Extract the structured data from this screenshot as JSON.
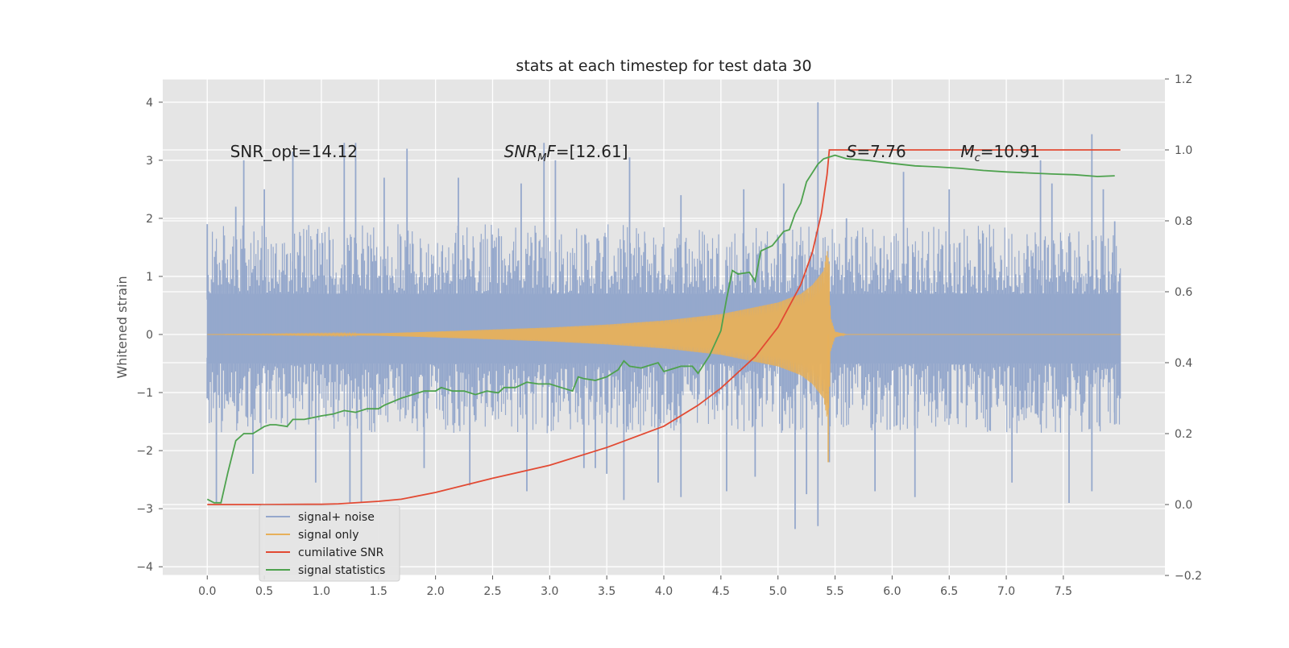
{
  "chart_data": {
    "type": "line",
    "title": "stats at each timestep for test data 30",
    "ylabel": "Whitened strain",
    "xlabel": "",
    "xlim": [
      -0.39,
      8.39
    ],
    "ylim": [
      -4.15,
      4.4
    ],
    "y2lim": [
      -0.2,
      1.2
    ],
    "xticks": [
      0.0,
      0.5,
      1.0,
      1.5,
      2.0,
      2.5,
      3.0,
      3.5,
      4.0,
      4.5,
      5.0,
      5.5,
      6.0,
      6.5,
      7.0,
      7.5
    ],
    "xtick_labels": [
      "0.0",
      "0.5",
      "1.0",
      "1.5",
      "2.0",
      "2.5",
      "3.0",
      "3.5",
      "4.0",
      "4.5",
      "5.0",
      "5.5",
      "6.0",
      "6.5",
      "7.0",
      "7.5"
    ],
    "yticks": [
      4,
      3,
      2,
      1,
      0,
      -1,
      -2,
      -3,
      -4
    ],
    "ytick_labels": [
      "4",
      "3",
      "2",
      "1",
      "0",
      "−1",
      "−2",
      "−3",
      "−4"
    ],
    "y2ticks": [
      1.2,
      1.0,
      0.8,
      0.6,
      0.4,
      0.2,
      0.0,
      -0.2
    ],
    "y2tick_labels": [
      "1.2",
      "1.0",
      "0.8",
      "0.6",
      "0.4",
      "0.2",
      "0.0",
      "−0.2"
    ],
    "grid": true,
    "legend_position": "lower-left",
    "annotations": [
      {
        "id": "snr-opt",
        "label": "SNR_opt=14.12",
        "x": 0.2,
        "y": 3.15
      },
      {
        "id": "snr-mf",
        "label": "SNR_MF=[12.61]",
        "x": 2.6,
        "y": 3.15
      },
      {
        "id": "s-stat",
        "label": "S=7.76",
        "x": 5.6,
        "y": 3.15
      },
      {
        "id": "mchirp",
        "label": "M_c=10.91",
        "x": 6.6,
        "y": 3.15
      }
    ],
    "series": [
      {
        "name": "signal+ noise",
        "axis": "left",
        "color": "#95a8cc",
        "style": "noise-band",
        "x_range": [
          0.0,
          8.0
        ],
        "core_range": [
          -0.5,
          0.7
        ],
        "spike_positive": [
          [
            0.0,
            1.9
          ],
          [
            0.25,
            2.2
          ],
          [
            0.32,
            3.0
          ],
          [
            0.5,
            2.5
          ],
          [
            0.75,
            3.15
          ],
          [
            1.2,
            3.3
          ],
          [
            1.3,
            3.3
          ],
          [
            1.55,
            2.7
          ],
          [
            1.75,
            3.2
          ],
          [
            2.2,
            2.7
          ],
          [
            2.75,
            2.6
          ],
          [
            2.95,
            3.3
          ],
          [
            3.05,
            3.0
          ],
          [
            3.7,
            3.05
          ],
          [
            4.15,
            2.4
          ],
          [
            4.7,
            2.5
          ],
          [
            5.05,
            2.6
          ],
          [
            5.35,
            4.0
          ],
          [
            5.6,
            2.0
          ],
          [
            6.1,
            2.8
          ],
          [
            6.5,
            2.5
          ],
          [
            7.3,
            3.0
          ],
          [
            7.4,
            2.6
          ],
          [
            7.75,
            3.45
          ],
          [
            7.85,
            2.5
          ],
          [
            7.95,
            1.95
          ]
        ],
        "spike_negative": [
          [
            0.0,
            -1.1
          ],
          [
            0.08,
            -2.9
          ],
          [
            0.4,
            -2.4
          ],
          [
            0.95,
            -2.55
          ],
          [
            1.25,
            -2.9
          ],
          [
            1.35,
            -2.9
          ],
          [
            1.9,
            -2.3
          ],
          [
            2.3,
            -2.6
          ],
          [
            2.8,
            -2.7
          ],
          [
            3.3,
            -2.3
          ],
          [
            3.4,
            -2.3
          ],
          [
            3.5,
            -2.4
          ],
          [
            3.65,
            -2.85
          ],
          [
            3.95,
            -2.55
          ],
          [
            4.15,
            -2.8
          ],
          [
            4.55,
            -2.7
          ],
          [
            4.8,
            -2.45
          ],
          [
            5.15,
            -3.35
          ],
          [
            5.25,
            -2.75
          ],
          [
            5.35,
            -3.3
          ],
          [
            5.45,
            -2.2
          ],
          [
            5.85,
            -2.7
          ],
          [
            6.2,
            -2.8
          ],
          [
            7.05,
            -2.55
          ],
          [
            7.55,
            -2.9
          ],
          [
            7.75,
            -2.7
          ],
          [
            7.95,
            -1.55
          ]
        ]
      },
      {
        "name": "signal only",
        "axis": "left",
        "color": "#e7b05a",
        "style": "chirp",
        "merger_time": 5.45,
        "amplitude_envelope": [
          [
            0.0,
            0.0
          ],
          [
            1.5,
            0.02
          ],
          [
            2.0,
            0.05
          ],
          [
            3.0,
            0.12
          ],
          [
            3.5,
            0.17
          ],
          [
            4.0,
            0.24
          ],
          [
            4.5,
            0.35
          ],
          [
            5.0,
            0.55
          ],
          [
            5.2,
            0.7
          ],
          [
            5.3,
            0.85
          ],
          [
            5.4,
            1.1
          ],
          [
            5.43,
            1.45
          ],
          [
            5.45,
            1.2
          ],
          [
            5.46,
            0.3
          ],
          [
            5.5,
            0.05
          ],
          [
            5.6,
            0.0
          ],
          [
            8.0,
            0.0
          ]
        ],
        "extreme_lows": [
          [
            5.44,
            -2.2
          ]
        ]
      },
      {
        "name": "cumilative SNR",
        "axis": "right",
        "color": "#e24a33",
        "points": [
          [
            0.0,
            0.0
          ],
          [
            0.5,
            0.0
          ],
          [
            1.0,
            0.001
          ],
          [
            1.15,
            0.002
          ],
          [
            1.5,
            0.009
          ],
          [
            1.7,
            0.015
          ],
          [
            2.0,
            0.034
          ],
          [
            2.5,
            0.074
          ],
          [
            3.0,
            0.111
          ],
          [
            3.5,
            0.161
          ],
          [
            4.0,
            0.221
          ],
          [
            4.3,
            0.28
          ],
          [
            4.5,
            0.328
          ],
          [
            4.8,
            0.417
          ],
          [
            5.0,
            0.5
          ],
          [
            5.2,
            0.62
          ],
          [
            5.3,
            0.71
          ],
          [
            5.38,
            0.82
          ],
          [
            5.43,
            0.93
          ],
          [
            5.45,
            1.0
          ],
          [
            8.0,
            1.0
          ]
        ]
      },
      {
        "name": "signal statistics",
        "axis": "right",
        "color": "#4ea24e",
        "points": [
          [
            0.0,
            0.015
          ],
          [
            0.06,
            0.005
          ],
          [
            0.12,
            0.005
          ],
          [
            0.18,
            0.09
          ],
          [
            0.25,
            0.18
          ],
          [
            0.32,
            0.2
          ],
          [
            0.4,
            0.2
          ],
          [
            0.5,
            0.22
          ],
          [
            0.55,
            0.225
          ],
          [
            0.6,
            0.225
          ],
          [
            0.7,
            0.22
          ],
          [
            0.75,
            0.24
          ],
          [
            0.85,
            0.24
          ],
          [
            1.0,
            0.25
          ],
          [
            1.1,
            0.255
          ],
          [
            1.2,
            0.265
          ],
          [
            1.3,
            0.26
          ],
          [
            1.4,
            0.27
          ],
          [
            1.5,
            0.27
          ],
          [
            1.55,
            0.28
          ],
          [
            1.7,
            0.3
          ],
          [
            1.8,
            0.31
          ],
          [
            1.9,
            0.32
          ],
          [
            2.0,
            0.32
          ],
          [
            2.05,
            0.33
          ],
          [
            2.15,
            0.32
          ],
          [
            2.25,
            0.32
          ],
          [
            2.35,
            0.31
          ],
          [
            2.45,
            0.32
          ],
          [
            2.55,
            0.315
          ],
          [
            2.6,
            0.33
          ],
          [
            2.7,
            0.33
          ],
          [
            2.8,
            0.345
          ],
          [
            2.9,
            0.34
          ],
          [
            3.0,
            0.34
          ],
          [
            3.1,
            0.33
          ],
          [
            3.2,
            0.32
          ],
          [
            3.25,
            0.36
          ],
          [
            3.3,
            0.355
          ],
          [
            3.4,
            0.35
          ],
          [
            3.5,
            0.36
          ],
          [
            3.6,
            0.38
          ],
          [
            3.65,
            0.405
          ],
          [
            3.7,
            0.39
          ],
          [
            3.8,
            0.385
          ],
          [
            3.85,
            0.39
          ],
          [
            3.95,
            0.4
          ],
          [
            4.0,
            0.375
          ],
          [
            4.1,
            0.385
          ],
          [
            4.15,
            0.39
          ],
          [
            4.25,
            0.39
          ],
          [
            4.3,
            0.37
          ],
          [
            4.4,
            0.42
          ],
          [
            4.5,
            0.49
          ],
          [
            4.55,
            0.58
          ],
          [
            4.6,
            0.66
          ],
          [
            4.65,
            0.65
          ],
          [
            4.75,
            0.655
          ],
          [
            4.8,
            0.63
          ],
          [
            4.85,
            0.715
          ],
          [
            4.95,
            0.73
          ],
          [
            5.0,
            0.75
          ],
          [
            5.05,
            0.77
          ],
          [
            5.1,
            0.775
          ],
          [
            5.15,
            0.82
          ],
          [
            5.2,
            0.85
          ],
          [
            5.25,
            0.91
          ],
          [
            5.35,
            0.96
          ],
          [
            5.4,
            0.975
          ],
          [
            5.5,
            0.985
          ],
          [
            5.6,
            0.975
          ],
          [
            5.8,
            0.97
          ],
          [
            6.0,
            0.962
          ],
          [
            6.2,
            0.955
          ],
          [
            6.4,
            0.952
          ],
          [
            6.6,
            0.948
          ],
          [
            6.8,
            0.942
          ],
          [
            7.0,
            0.938
          ],
          [
            7.2,
            0.935
          ],
          [
            7.4,
            0.932
          ],
          [
            7.6,
            0.93
          ],
          [
            7.8,
            0.925
          ],
          [
            7.95,
            0.927
          ]
        ]
      }
    ]
  }
}
